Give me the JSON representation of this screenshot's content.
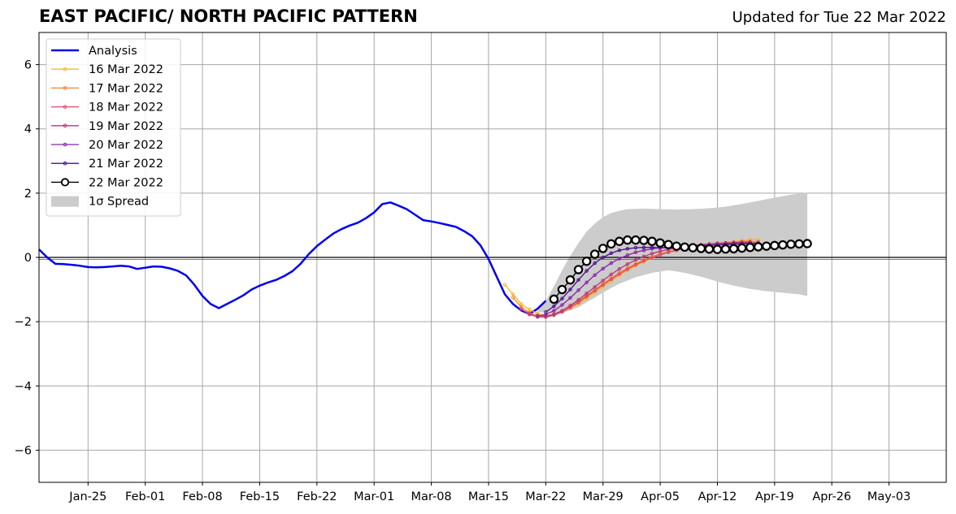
{
  "chart_data": {
    "type": "line",
    "title": "EAST PACIFIC/ NORTH PACIFIC PATTERN",
    "subtitle": "Updated for Tue 22 Mar 2022",
    "xlabel": "",
    "ylabel": "",
    "grid": true,
    "legend_position": "top-left",
    "x_range": [
      "2022-01-19",
      "2022-05-10"
    ],
    "ylim": [
      -7,
      7
    ],
    "x_ticks": [
      {
        "date": "2022-01-25",
        "label": "Jan-25"
      },
      {
        "date": "2022-02-01",
        "label": "Feb-01"
      },
      {
        "date": "2022-02-08",
        "label": "Feb-08"
      },
      {
        "date": "2022-02-15",
        "label": "Feb-15"
      },
      {
        "date": "2022-02-22",
        "label": "Feb-22"
      },
      {
        "date": "2022-03-01",
        "label": "Mar-01"
      },
      {
        "date": "2022-03-08",
        "label": "Mar-08"
      },
      {
        "date": "2022-03-15",
        "label": "Mar-15"
      },
      {
        "date": "2022-03-22",
        "label": "Mar-22"
      },
      {
        "date": "2022-03-29",
        "label": "Mar-29"
      },
      {
        "date": "2022-04-05",
        "label": "Apr-05"
      },
      {
        "date": "2022-04-12",
        "label": "Apr-12"
      },
      {
        "date": "2022-04-19",
        "label": "Apr-19"
      },
      {
        "date": "2022-04-26",
        "label": "Apr-26"
      },
      {
        "date": "2022-05-03",
        "label": "May-03"
      }
    ],
    "y_ticks": [
      {
        "value": -6,
        "label": "−6"
      },
      {
        "value": -4,
        "label": "−4"
      },
      {
        "value": -2,
        "label": "−2"
      },
      {
        "value": 0,
        "label": "0"
      },
      {
        "value": 2,
        "label": "2"
      },
      {
        "value": 4,
        "label": "4"
      },
      {
        "value": 6,
        "label": "6"
      }
    ],
    "analysis": {
      "name": "Analysis",
      "color": "#0000ee",
      "points": [
        [
          "2022-01-19",
          0.25
        ],
        [
          "2022-01-20",
          0.0
        ],
        [
          "2022-01-21",
          -0.2
        ],
        [
          "2022-01-22",
          -0.21
        ],
        [
          "2022-01-23",
          -0.23
        ],
        [
          "2022-01-24",
          -0.26
        ],
        [
          "2022-01-25",
          -0.3
        ],
        [
          "2022-01-26",
          -0.31
        ],
        [
          "2022-01-27",
          -0.3
        ],
        [
          "2022-01-28",
          -0.28
        ],
        [
          "2022-01-29",
          -0.26
        ],
        [
          "2022-01-30",
          -0.28
        ],
        [
          "2022-01-31",
          -0.36
        ],
        [
          "2022-02-01",
          -0.32
        ],
        [
          "2022-02-02",
          -0.28
        ],
        [
          "2022-02-03",
          -0.29
        ],
        [
          "2022-02-04",
          -0.34
        ],
        [
          "2022-02-05",
          -0.42
        ],
        [
          "2022-02-06",
          -0.56
        ],
        [
          "2022-02-07",
          -0.85
        ],
        [
          "2022-02-08",
          -1.2
        ],
        [
          "2022-02-09",
          -1.45
        ],
        [
          "2022-02-10",
          -1.58
        ],
        [
          "2022-02-11",
          -1.45
        ],
        [
          "2022-02-12",
          -1.32
        ],
        [
          "2022-02-13",
          -1.18
        ],
        [
          "2022-02-14",
          -1.0
        ],
        [
          "2022-02-15",
          -0.88
        ],
        [
          "2022-02-16",
          -0.78
        ],
        [
          "2022-02-17",
          -0.7
        ],
        [
          "2022-02-18",
          -0.58
        ],
        [
          "2022-02-19",
          -0.43
        ],
        [
          "2022-02-20",
          -0.2
        ],
        [
          "2022-02-21",
          0.1
        ],
        [
          "2022-02-22",
          0.35
        ],
        [
          "2022-02-23",
          0.55
        ],
        [
          "2022-02-24",
          0.74
        ],
        [
          "2022-02-25",
          0.88
        ],
        [
          "2022-02-26",
          0.99
        ],
        [
          "2022-02-27",
          1.08
        ],
        [
          "2022-02-28",
          1.22
        ],
        [
          "2022-03-01",
          1.4
        ],
        [
          "2022-03-02",
          1.66
        ],
        [
          "2022-03-03",
          1.71
        ],
        [
          "2022-03-04",
          1.61
        ],
        [
          "2022-03-05",
          1.5
        ],
        [
          "2022-03-06",
          1.33
        ],
        [
          "2022-03-07",
          1.16
        ],
        [
          "2022-03-08",
          1.12
        ],
        [
          "2022-03-09",
          1.07
        ],
        [
          "2022-03-10",
          1.01
        ],
        [
          "2022-03-11",
          0.95
        ],
        [
          "2022-03-12",
          0.82
        ],
        [
          "2022-03-13",
          0.66
        ],
        [
          "2022-03-14",
          0.38
        ],
        [
          "2022-03-15",
          -0.05
        ],
        [
          "2022-03-16",
          -0.6
        ],
        [
          "2022-03-17",
          -1.15
        ],
        [
          "2022-03-18",
          -1.45
        ],
        [
          "2022-03-19",
          -1.65
        ],
        [
          "2022-03-20",
          -1.76
        ],
        [
          "2022-03-21",
          -1.6
        ],
        [
          "2022-03-22",
          -1.35
        ]
      ]
    },
    "spread": {
      "name": "1σ Spread",
      "color": "#cccccc",
      "upper": [
        [
          "2022-03-21",
          -1.7
        ],
        [
          "2022-03-22",
          -1.35
        ],
        [
          "2022-03-23",
          -0.9
        ],
        [
          "2022-03-24",
          -0.4
        ],
        [
          "2022-03-25",
          0.05
        ],
        [
          "2022-03-26",
          0.45
        ],
        [
          "2022-03-27",
          0.8
        ],
        [
          "2022-03-28",
          1.05
        ],
        [
          "2022-03-29",
          1.25
        ],
        [
          "2022-03-30",
          1.38
        ],
        [
          "2022-03-31",
          1.45
        ],
        [
          "2022-04-01",
          1.5
        ],
        [
          "2022-04-03",
          1.52
        ],
        [
          "2022-04-05",
          1.5
        ],
        [
          "2022-04-07",
          1.49
        ],
        [
          "2022-04-09",
          1.5
        ],
        [
          "2022-04-11",
          1.53
        ],
        [
          "2022-04-13",
          1.58
        ],
        [
          "2022-04-15",
          1.66
        ],
        [
          "2022-04-17",
          1.76
        ],
        [
          "2022-04-19",
          1.86
        ],
        [
          "2022-04-21",
          1.95
        ],
        [
          "2022-04-23",
          2.02
        ]
      ],
      "lower": [
        [
          "2022-03-21",
          -1.7
        ],
        [
          "2022-03-22",
          -1.72
        ],
        [
          "2022-03-23",
          -1.75
        ],
        [
          "2022-03-24",
          -1.72
        ],
        [
          "2022-03-25",
          -1.65
        ],
        [
          "2022-03-26",
          -1.55
        ],
        [
          "2022-03-27",
          -1.4
        ],
        [
          "2022-03-28",
          -1.25
        ],
        [
          "2022-03-29",
          -1.1
        ],
        [
          "2022-03-30",
          -0.95
        ],
        [
          "2022-03-31",
          -0.82
        ],
        [
          "2022-04-02",
          -0.62
        ],
        [
          "2022-04-04",
          -0.48
        ],
        [
          "2022-04-06",
          -0.4
        ],
        [
          "2022-04-08",
          -0.48
        ],
        [
          "2022-04-10",
          -0.6
        ],
        [
          "2022-04-12",
          -0.75
        ],
        [
          "2022-04-14",
          -0.88
        ],
        [
          "2022-04-16",
          -0.98
        ],
        [
          "2022-04-18",
          -1.05
        ],
        [
          "2022-04-20",
          -1.1
        ],
        [
          "2022-04-22",
          -1.15
        ],
        [
          "2022-04-23",
          -1.2
        ]
      ]
    },
    "forecasts": [
      {
        "name": "16 Mar 2022",
        "color": "#fcb827",
        "start": "2022-03-17",
        "values": [
          -0.85,
          -1.15,
          -1.45,
          -1.62,
          -1.74,
          -1.8,
          -1.78,
          -1.7,
          -1.58,
          -1.44,
          -1.28,
          -1.1,
          -0.92,
          -0.74,
          -0.56,
          -0.4,
          -0.26,
          -0.13,
          -0.02,
          0.08,
          0.16,
          0.23,
          0.28,
          0.33,
          0.37,
          0.4,
          0.43,
          0.46,
          0.49,
          0.52,
          0.55,
          0.55
        ]
      },
      {
        "name": "17 Mar 2022",
        "color": "#f3822c",
        "start": "2022-03-18",
        "values": [
          -1.25,
          -1.55,
          -1.72,
          -1.8,
          -1.82,
          -1.76,
          -1.66,
          -1.52,
          -1.36,
          -1.18,
          -1.0,
          -0.82,
          -0.65,
          -0.48,
          -0.33,
          -0.2,
          -0.08,
          0.02,
          0.11,
          0.18,
          0.24,
          0.29,
          0.34,
          0.38,
          0.41,
          0.44,
          0.46,
          0.48,
          0.5,
          0.5
        ]
      },
      {
        "name": "18 Mar 2022",
        "color": "#dd4a68",
        "start": "2022-03-19",
        "values": [
          -1.6,
          -1.78,
          -1.85,
          -1.86,
          -1.8,
          -1.7,
          -1.56,
          -1.4,
          -1.22,
          -1.04,
          -0.86,
          -0.68,
          -0.52,
          -0.37,
          -0.23,
          -0.11,
          -0.01,
          0.08,
          0.16,
          0.22,
          0.28,
          0.32,
          0.36,
          0.39,
          0.42,
          0.44,
          0.46,
          0.47,
          0.48,
          0.48
        ]
      },
      {
        "name": "19 Mar 2022",
        "color": "#b5367a",
        "start": "2022-03-20",
        "values": [
          -1.75,
          -1.85,
          -1.84,
          -1.78,
          -1.66,
          -1.5,
          -1.32,
          -1.12,
          -0.92,
          -0.72,
          -0.53,
          -0.36,
          -0.21,
          -0.08,
          0.03,
          0.12,
          0.19,
          0.25,
          0.3,
          0.34,
          0.37,
          0.4,
          0.42,
          0.44,
          0.45,
          0.46,
          0.47,
          0.47
        ]
      },
      {
        "name": "20 Mar 2022",
        "color": "#8a22a8",
        "start": "2022-03-21",
        "values": [
          -1.82,
          -1.78,
          -1.66,
          -1.48,
          -1.26,
          -1.02,
          -0.78,
          -0.55,
          -0.35,
          -0.18,
          -0.04,
          0.07,
          0.16,
          0.22,
          0.27,
          0.3,
          0.32,
          0.34,
          0.35,
          0.36,
          0.37,
          0.38,
          0.39,
          0.4,
          0.41,
          0.42,
          0.43,
          0.44
        ]
      },
      {
        "name": "21 Mar 2022",
        "color": "#4e0c8a",
        "start": "2022-03-22",
        "values": [
          -1.7,
          -1.52,
          -1.28,
          -1.0,
          -0.7,
          -0.42,
          -0.18,
          0.0,
          0.13,
          0.22,
          0.27,
          0.3,
          0.31,
          0.31,
          0.3,
          0.3,
          0.3,
          0.31,
          0.33,
          0.35,
          0.37,
          0.39,
          0.41,
          0.42,
          0.43,
          0.44,
          0.44
        ]
      }
    ],
    "latest_forecast": {
      "name": "22 Mar 2022",
      "color": "#000000",
      "marker": "open-circle",
      "start": "2022-03-23",
      "values": [
        -1.3,
        -1.0,
        -0.7,
        -0.38,
        -0.12,
        0.1,
        0.28,
        0.42,
        0.5,
        0.54,
        0.54,
        0.53,
        0.5,
        0.45,
        0.4,
        0.35,
        0.32,
        0.3,
        0.28,
        0.26,
        0.25,
        0.26,
        0.27,
        0.29,
        0.31,
        0.33,
        0.35,
        0.37,
        0.39,
        0.41,
        0.42,
        0.43
      ]
    }
  }
}
